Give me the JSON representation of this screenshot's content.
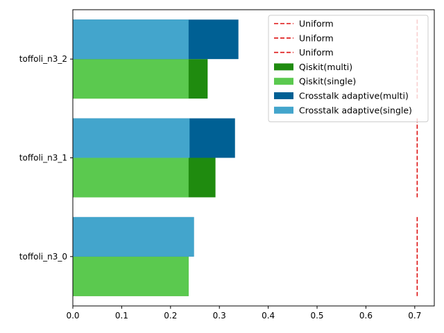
{
  "chart_data": {
    "type": "bar",
    "orientation": "horizontal",
    "categories": [
      "toffoli_n3_0",
      "toffoli_n3_1",
      "toffoli_n3_2"
    ],
    "series": [
      {
        "name": "Qiskit(multi)",
        "group": "lower",
        "values": [
          0.237,
          0.292,
          0.276
        ],
        "color": "#1f8b0f"
      },
      {
        "name": "Qiskit(single)",
        "group": "lower",
        "values": [
          0.237,
          0.237,
          0.237
        ],
        "color": "#5bc94f"
      },
      {
        "name": "Crosstalk adaptive(multi)",
        "group": "upper",
        "values": [
          0.248,
          0.332,
          0.339
        ],
        "color": "#006094"
      },
      {
        "name": "Crosstalk adaptive(single)",
        "group": "upper",
        "values": [
          0.248,
          0.239,
          0.237
        ],
        "color": "#43a5cc"
      }
    ],
    "uniform_lines": [
      {
        "name": "Uniform",
        "x": 0.705,
        "category": "toffoli_n3_0",
        "color": "#dd1111"
      },
      {
        "name": "Uniform",
        "x": 0.705,
        "category": "toffoli_n3_1",
        "color": "#dd1111"
      },
      {
        "name": "Uniform",
        "x": 0.705,
        "category": "toffoli_n3_2",
        "color": "#dd1111"
      }
    ],
    "xticks": [
      0.0,
      0.1,
      0.2,
      0.3,
      0.4,
      0.5,
      0.6,
      0.7
    ],
    "xtick_labels": [
      "0.0",
      "0.1",
      "0.2",
      "0.3",
      "0.4",
      "0.5",
      "0.6",
      "0.7"
    ],
    "xlim": [
      0,
      0.74
    ],
    "title": "",
    "xlabel": "",
    "ylabel": "",
    "grid": false,
    "legend_position": "top-right",
    "legend": [
      "Uniform",
      "Uniform",
      "Uniform",
      "Qiskit(multi)",
      "Qiskit(single)",
      "Crosstalk adaptive(multi)",
      "Crosstalk adaptive(single)"
    ]
  }
}
